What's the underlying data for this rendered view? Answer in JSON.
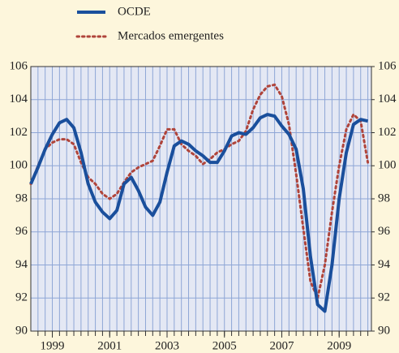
{
  "chart_data": {
    "type": "line",
    "x": [
      1998.75,
      1999,
      1999.25,
      1999.5,
      1999.75,
      2000,
      2000.25,
      2000.5,
      2000.75,
      2001,
      2001.25,
      2001.5,
      2001.75,
      2002,
      2002.25,
      2002.5,
      2002.75,
      2003,
      2003.25,
      2003.5,
      2003.75,
      2004,
      2004.25,
      2004.5,
      2004.75,
      2005,
      2005.25,
      2005.5,
      2005.75,
      2006,
      2006.25,
      2006.5,
      2006.75,
      2007,
      2007.25,
      2007.5,
      2007.75,
      2008,
      2008.25,
      2008.5,
      2008.75,
      2009,
      2009.25,
      2009.5,
      2009.75,
      2010,
      2010.25,
      2010.5
    ],
    "series": [
      {
        "name": "OCDE",
        "color": "#1a4f9c",
        "style": "solid",
        "values": [
          98.9,
          99.9,
          101.0,
          101.9,
          102.6,
          102.8,
          102.3,
          100.8,
          98.9,
          97.8,
          97.2,
          96.8,
          97.3,
          98.9,
          99.3,
          98.5,
          97.5,
          97.0,
          97.8,
          99.6,
          101.2,
          101.5,
          101.3,
          100.9,
          100.6,
          100.2,
          100.2,
          100.9,
          101.8,
          102.0,
          101.9,
          102.3,
          102.9,
          103.1,
          103.0,
          102.4,
          101.9,
          101.0,
          98.6,
          94.5,
          91.6,
          91.2,
          94.0,
          98.0,
          100.8,
          102.5,
          102.8,
          102.7
        ]
      },
      {
        "name": "Mercados emergentes",
        "color": "#b0443a",
        "style": "dotted",
        "values": [
          98.9,
          100.0,
          101.0,
          101.4,
          101.6,
          101.6,
          101.3,
          100.2,
          99.3,
          98.9,
          98.3,
          98.0,
          98.3,
          99.0,
          99.6,
          99.9,
          100.1,
          100.3,
          101.2,
          102.2,
          102.2,
          101.3,
          100.9,
          100.6,
          100.1,
          100.4,
          100.8,
          101.0,
          101.3,
          101.5,
          102.1,
          103.4,
          104.3,
          104.8,
          104.9,
          104.2,
          102.5,
          99.5,
          96.2,
          93.0,
          92.0,
          94.0,
          97.2,
          100.0,
          102.2,
          103.1,
          102.7,
          100.2
        ]
      }
    ],
    "xlim": [
      1998.75,
      2010.625
    ],
    "xticks": [
      {
        "value": 1999.5,
        "label": "1999"
      },
      {
        "value": 2001.5,
        "label": "2001"
      },
      {
        "value": 2003.5,
        "label": "2003"
      },
      {
        "value": 2005.5,
        "label": "2005"
      },
      {
        "value": 2007.5,
        "label": "2007"
      },
      {
        "value": 2009.5,
        "label": "2009"
      }
    ],
    "ylim": [
      90,
      106
    ],
    "yticks": [
      90,
      92,
      94,
      96,
      98,
      100,
      102,
      104,
      106
    ],
    "y2lim": [
      90,
      106
    ],
    "y2ticks": [
      90,
      92,
      94,
      96,
      98,
      100,
      102,
      104,
      106
    ],
    "grid": true,
    "minor_grid_step": 0.25,
    "legend": "top-left"
  }
}
